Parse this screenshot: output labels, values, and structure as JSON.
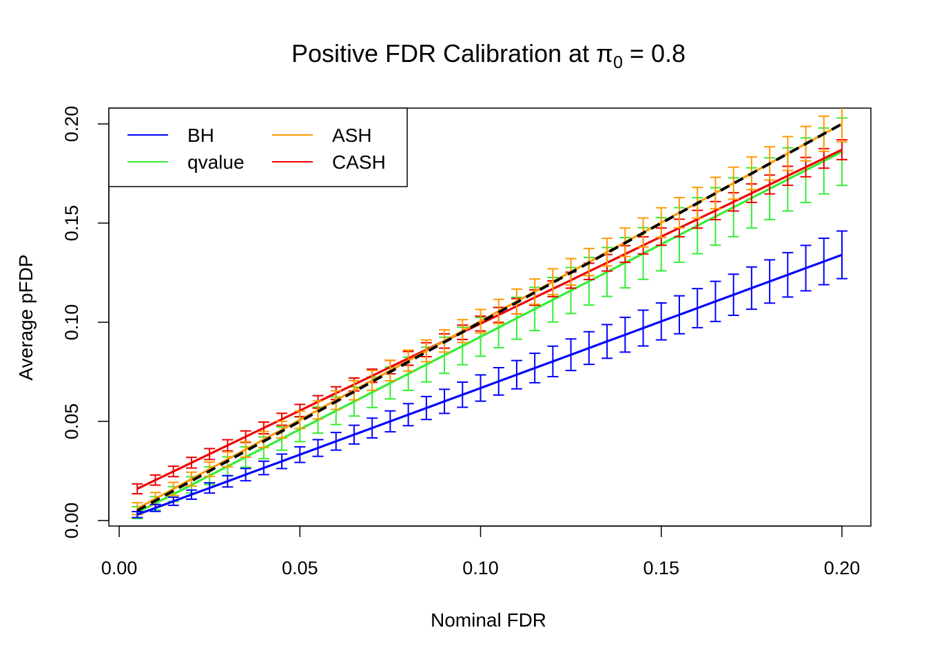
{
  "chart_data": {
    "type": "line",
    "title_prefix": "Positive FDR Calibration at ",
    "title_symbol": "π",
    "title_subscript": "0",
    "title_suffix": " = 0.8",
    "xlabel": "Nominal FDR",
    "ylabel": "Average pFDP",
    "xlim": [
      0.0,
      0.2
    ],
    "ylim": [
      0.0,
      0.2
    ],
    "x_ticks": [
      "0.00",
      "0.05",
      "0.10",
      "0.15",
      "0.20"
    ],
    "y_ticks": [
      "0.00",
      "0.05",
      "0.10",
      "0.15",
      "0.20"
    ],
    "grid": false,
    "legend_position": "top-left",
    "reference_line": {
      "style": "dashed",
      "color": "#000000",
      "from": [
        0.005,
        0.005
      ],
      "to": [
        0.2,
        0.2
      ]
    },
    "series": [
      {
        "name": "BH",
        "color": "#0000ff",
        "start": 0.003,
        "end": 0.134,
        "err_start": 0.0015,
        "err_end": 0.012
      },
      {
        "name": "qvalue",
        "color": "#33ee33",
        "start": 0.004,
        "end": 0.186,
        "err_start": 0.003,
        "err_end": 0.017
      },
      {
        "name": "ASH",
        "color": "#ff9900",
        "start": 0.006,
        "end": 0.2,
        "err_start": 0.003,
        "err_end": 0.009
      },
      {
        "name": "CASH",
        "color": "#ee0000",
        "start": 0.016,
        "end": 0.187,
        "err_start": 0.0025,
        "err_end": 0.005
      }
    ]
  }
}
